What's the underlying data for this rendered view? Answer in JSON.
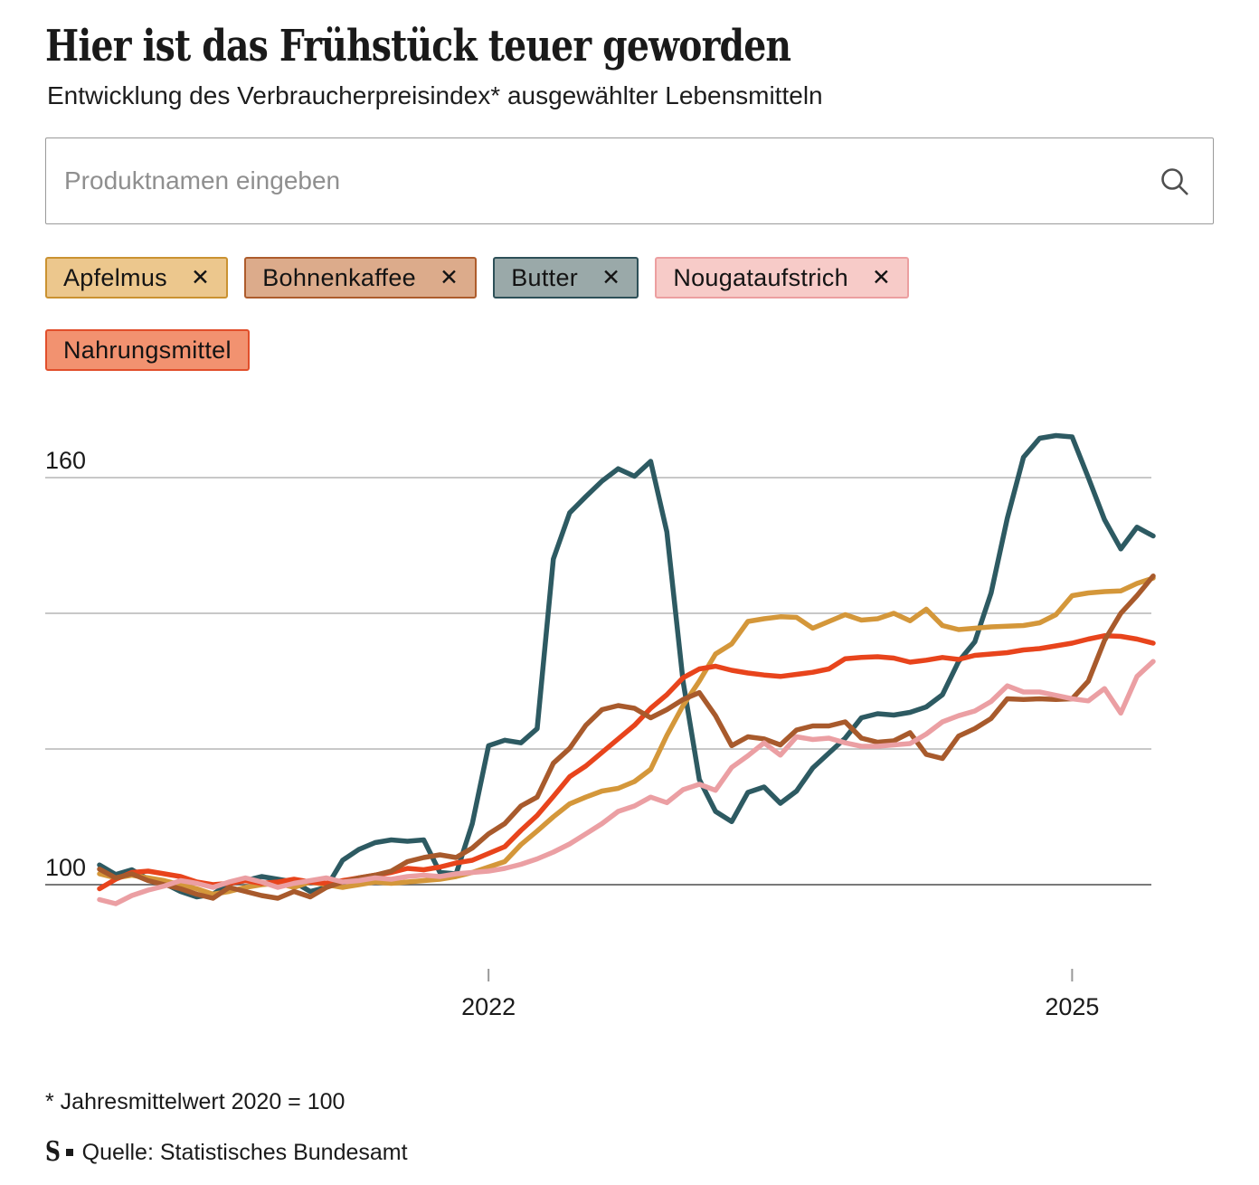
{
  "header": {
    "title": "Hier ist das Frühstück teuer geworden",
    "subtitle": "Entwicklung des Verbraucherpreisindex* ausgewählter Lebensmitteln"
  },
  "search": {
    "placeholder": "Produktnamen eingeben",
    "icon": "search-icon"
  },
  "filters": {
    "remove_icon": "✕",
    "chips": [
      {
        "label": "Apfelmus",
        "removable": true,
        "fill": "#ecc78d",
        "border": "#ca9231"
      },
      {
        "label": "Bohnenkaffee",
        "removable": true,
        "fill": "#dcab8b",
        "border": "#ad5c2c"
      },
      {
        "label": "Butter",
        "removable": true,
        "fill": "#9aa9a9",
        "border": "#2d5058"
      },
      {
        "label": "Nougataufstrich",
        "removable": true,
        "fill": "#f7cbc8",
        "border": "#ec9fa0"
      },
      {
        "label": "Nahrungsmittel",
        "removable": false,
        "fill": "#f29270",
        "border": "#e14f2b"
      }
    ]
  },
  "chart_data": {
    "type": "line",
    "interval": "monthly",
    "x_start": "2020-01",
    "x_end": "2025-06",
    "y_gridlines": [
      160,
      140,
      120,
      100
    ],
    "y_tick_labels": [
      160,
      100
    ],
    "baseline": 100,
    "grid_color": "#b5b5b5",
    "baseline_color": "#4d4d4d",
    "tick_color": "#999999",
    "x_ticks": [
      {
        "label": "2022",
        "month_index": 24
      },
      {
        "label": "2025",
        "month_index": 60
      }
    ],
    "series": [
      {
        "name": "Butter",
        "color": "#2d5a62",
        "values": [
          102.9,
          101.5,
          102.2,
          100.8,
          100.2,
          99.0,
          98.2,
          98.6,
          100.2,
          100.6,
          101.2,
          100.8,
          100.4,
          99.0,
          99.6,
          103.6,
          105.2,
          106.2,
          106.6,
          106.4,
          106.6,
          101.8,
          101.6,
          109.0,
          120.5,
          121.3,
          120.9,
          123.0,
          148.0,
          154.8,
          157.2,
          159.5,
          161.3,
          160.2,
          162.4,
          152.0,
          130.0,
          115.5,
          110.8,
          109.3,
          113.6,
          114.4,
          112.0,
          113.8,
          117.2,
          119.4,
          121.6,
          124.6,
          125.2,
          125.0,
          125.4,
          126.2,
          128.0,
          132.9,
          135.8,
          143.0,
          154.0,
          163.0,
          165.8,
          166.2,
          166.0,
          160.0,
          153.8,
          149.5,
          152.7,
          151.4
        ]
      },
      {
        "name": "Apfelmus",
        "color": "#d4973a",
        "values": [
          101.6,
          101.0,
          101.4,
          101.0,
          100.6,
          100.0,
          99.4,
          98.6,
          99.0,
          99.6,
          100.0,
          100.2,
          99.6,
          100.4,
          100.0,
          99.6,
          100.0,
          100.4,
          100.2,
          100.4,
          100.6,
          100.8,
          101.2,
          101.8,
          102.6,
          103.4,
          105.9,
          107.9,
          110.0,
          111.9,
          112.9,
          113.8,
          114.2,
          115.2,
          117.0,
          122.0,
          126.4,
          130.0,
          134.0,
          135.5,
          138.8,
          139.2,
          139.5,
          139.4,
          137.8,
          138.8,
          139.8,
          139.0,
          139.2,
          140.0,
          138.9,
          140.6,
          138.2,
          137.6,
          137.8,
          138.0,
          138.1,
          138.2,
          138.6,
          139.8,
          142.6,
          143.0,
          143.2,
          143.3,
          144.4,
          145.2
        ]
      },
      {
        "name": "Nahrungsmittel",
        "color": "#e8441c",
        "values": [
          99.4,
          100.8,
          101.8,
          102.0,
          101.6,
          101.2,
          100.4,
          100.0,
          100.2,
          100.6,
          100.2,
          100.4,
          100.8,
          100.4,
          100.2,
          100.6,
          101.0,
          101.4,
          101.8,
          102.4,
          102.2,
          102.6,
          103.2,
          103.6,
          104.6,
          105.6,
          108.0,
          110.2,
          113.0,
          115.9,
          117.5,
          119.5,
          121.5,
          123.5,
          126.0,
          128.0,
          130.5,
          131.8,
          132.2,
          131.6,
          131.2,
          130.9,
          130.7,
          131.0,
          131.3,
          131.8,
          133.3,
          133.5,
          133.6,
          133.4,
          132.8,
          133.1,
          133.5,
          133.2,
          133.8,
          134.0,
          134.2,
          134.6,
          134.8,
          135.2,
          135.6,
          136.2,
          136.7,
          136.6,
          136.2,
          135.6
        ]
      },
      {
        "name": "Bohnenkaffee",
        "color": "#a85a2c",
        "values": [
          102.3,
          101.0,
          101.6,
          100.6,
          100.0,
          99.4,
          98.6,
          98.0,
          99.6,
          99.0,
          98.4,
          98.0,
          99.0,
          98.2,
          99.6,
          100.4,
          101.0,
          101.4,
          102.0,
          103.4,
          104.0,
          104.4,
          104.0,
          105.4,
          107.5,
          109.0,
          111.6,
          112.9,
          117.9,
          120.1,
          123.5,
          125.8,
          126.4,
          126.0,
          124.6,
          125.8,
          127.3,
          128.3,
          124.9,
          120.5,
          121.8,
          121.5,
          120.6,
          122.8,
          123.4,
          123.4,
          124.0,
          121.6,
          121.0,
          121.2,
          122.4,
          119.2,
          118.6,
          121.9,
          123.0,
          124.5,
          127.4,
          127.3,
          127.4,
          127.3,
          127.4,
          130.0,
          136.0,
          140.0,
          142.6,
          145.5
        ]
      },
      {
        "name": "Nougataufstrich",
        "color": "#eb9fa3",
        "values": [
          97.8,
          97.2,
          98.4,
          99.2,
          99.8,
          100.6,
          100.2,
          99.6,
          100.4,
          101.0,
          100.4,
          99.6,
          100.2,
          100.6,
          101.0,
          100.4,
          100.6,
          101.0,
          100.8,
          101.2,
          101.4,
          101.2,
          101.6,
          101.8,
          102.0,
          102.4,
          103.0,
          103.8,
          104.8,
          106.0,
          107.5,
          109.0,
          110.8,
          111.6,
          112.9,
          112.1,
          114.0,
          114.8,
          113.9,
          117.3,
          119.0,
          120.9,
          119.1,
          121.8,
          121.4,
          121.6,
          120.9,
          120.4,
          120.4,
          120.6,
          120.8,
          122.2,
          124.0,
          124.9,
          125.6,
          127.0,
          129.3,
          128.4,
          128.4,
          127.9,
          127.4,
          127.1,
          128.9,
          125.3,
          130.7,
          132.9
        ]
      }
    ]
  },
  "footer": {
    "footnote": "* Jahresmittelwert 2020 = 100",
    "logo": "S",
    "source": "Quelle: Statistisches Bundesamt"
  }
}
